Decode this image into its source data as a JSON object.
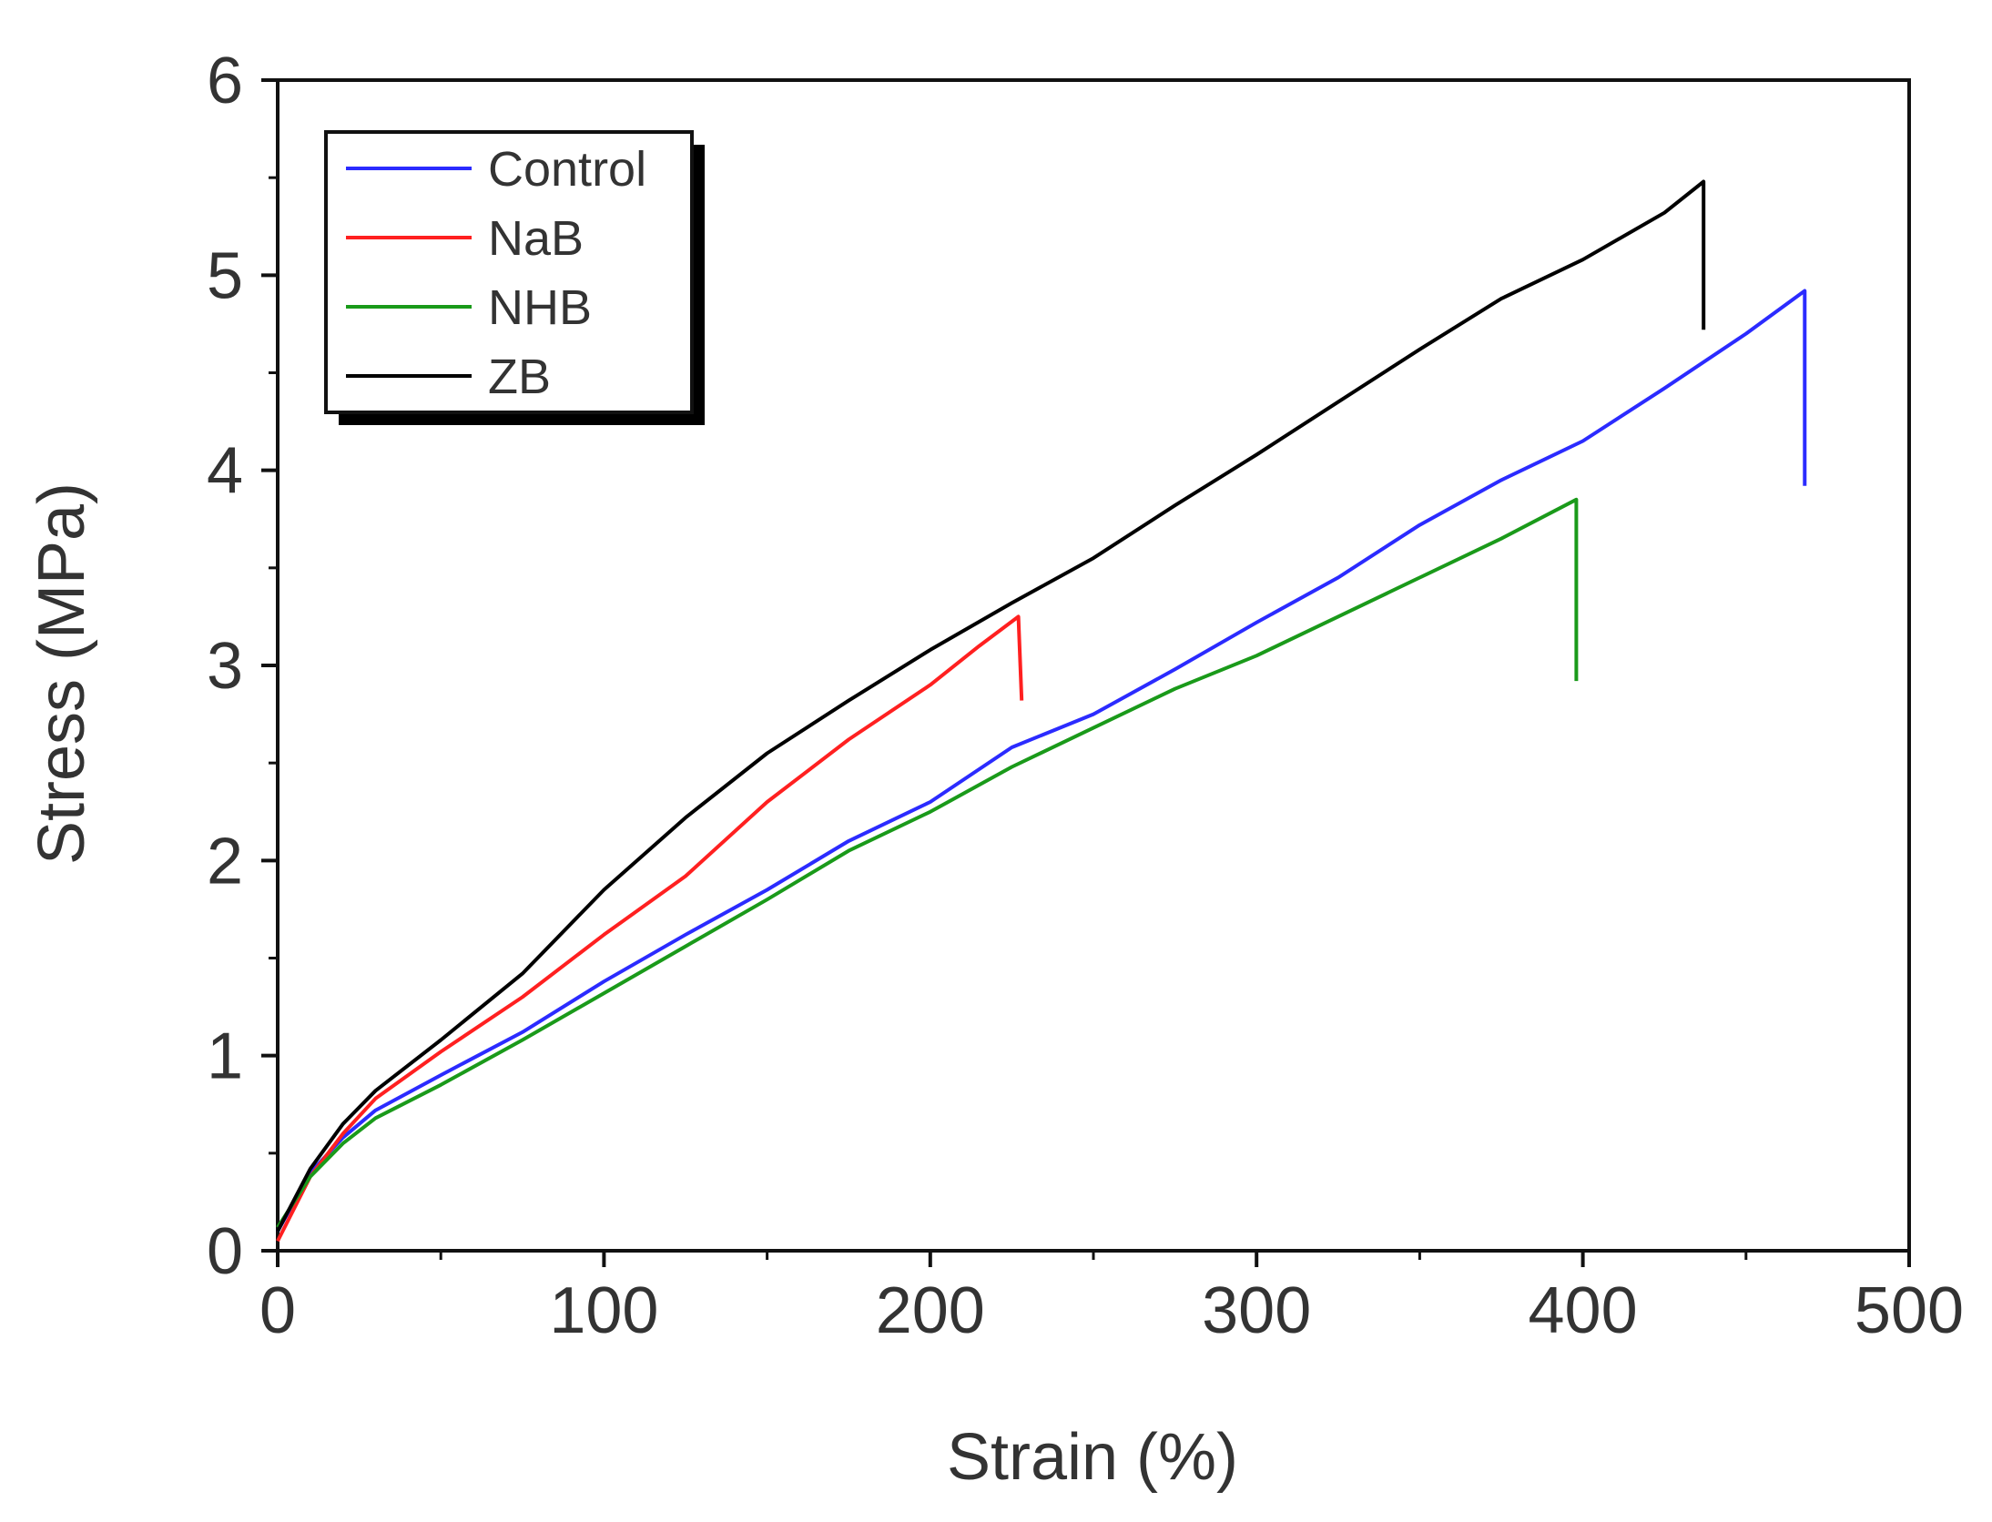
{
  "chart_data": {
    "type": "line",
    "title": "",
    "xlabel": "Strain (%)",
    "ylabel": "Stress (MPa)",
    "xlim": [
      0,
      500
    ],
    "ylim": [
      0,
      6
    ],
    "x_ticks": [
      0,
      100,
      200,
      300,
      400,
      500
    ],
    "y_ticks": [
      0,
      1,
      2,
      3,
      4,
      5,
      6
    ],
    "grid": false,
    "legend_position": "top-left",
    "series": [
      {
        "name": "Control",
        "color": "#2b2bff",
        "points": [
          [
            0,
            0.1
          ],
          [
            10,
            0.4
          ],
          [
            20,
            0.58
          ],
          [
            30,
            0.72
          ],
          [
            50,
            0.9
          ],
          [
            75,
            1.12
          ],
          [
            100,
            1.38
          ],
          [
            125,
            1.62
          ],
          [
            150,
            1.85
          ],
          [
            175,
            2.1
          ],
          [
            200,
            2.3
          ],
          [
            225,
            2.58
          ],
          [
            250,
            2.75
          ],
          [
            275,
            2.98
          ],
          [
            300,
            3.22
          ],
          [
            325,
            3.45
          ],
          [
            350,
            3.72
          ],
          [
            375,
            3.95
          ],
          [
            400,
            4.15
          ],
          [
            425,
            4.42
          ],
          [
            450,
            4.7
          ],
          [
            468,
            4.92
          ],
          [
            468,
            3.92
          ]
        ]
      },
      {
        "name": "NaB",
        "color": "#ff2020",
        "points": [
          [
            0,
            0.05
          ],
          [
            10,
            0.38
          ],
          [
            20,
            0.6
          ],
          [
            30,
            0.78
          ],
          [
            50,
            1.02
          ],
          [
            75,
            1.3
          ],
          [
            100,
            1.62
          ],
          [
            125,
            1.92
          ],
          [
            150,
            2.3
          ],
          [
            175,
            2.62
          ],
          [
            200,
            2.9
          ],
          [
            215,
            3.1
          ],
          [
            227,
            3.25
          ],
          [
            228,
            2.82
          ]
        ]
      },
      {
        "name": "NHB",
        "color": "#1a9a1a",
        "points": [
          [
            0,
            0.12
          ],
          [
            10,
            0.38
          ],
          [
            20,
            0.55
          ],
          [
            30,
            0.68
          ],
          [
            50,
            0.85
          ],
          [
            75,
            1.08
          ],
          [
            100,
            1.32
          ],
          [
            125,
            1.56
          ],
          [
            150,
            1.8
          ],
          [
            175,
            2.05
          ],
          [
            200,
            2.25
          ],
          [
            225,
            2.48
          ],
          [
            250,
            2.68
          ],
          [
            275,
            2.88
          ],
          [
            300,
            3.05
          ],
          [
            325,
            3.25
          ],
          [
            350,
            3.45
          ],
          [
            375,
            3.65
          ],
          [
            398,
            3.85
          ],
          [
            398,
            2.92
          ]
        ]
      },
      {
        "name": "ZB",
        "color": "#000000",
        "points": [
          [
            0,
            0.1
          ],
          [
            10,
            0.42
          ],
          [
            20,
            0.65
          ],
          [
            30,
            0.82
          ],
          [
            50,
            1.08
          ],
          [
            75,
            1.42
          ],
          [
            100,
            1.85
          ],
          [
            125,
            2.22
          ],
          [
            150,
            2.55
          ],
          [
            175,
            2.82
          ],
          [
            200,
            3.08
          ],
          [
            225,
            3.32
          ],
          [
            250,
            3.55
          ],
          [
            275,
            3.82
          ],
          [
            300,
            4.08
          ],
          [
            325,
            4.35
          ],
          [
            350,
            4.62
          ],
          [
            375,
            4.88
          ],
          [
            400,
            5.08
          ],
          [
            425,
            5.32
          ],
          [
            437,
            5.48
          ],
          [
            437,
            4.72
          ]
        ]
      }
    ]
  }
}
